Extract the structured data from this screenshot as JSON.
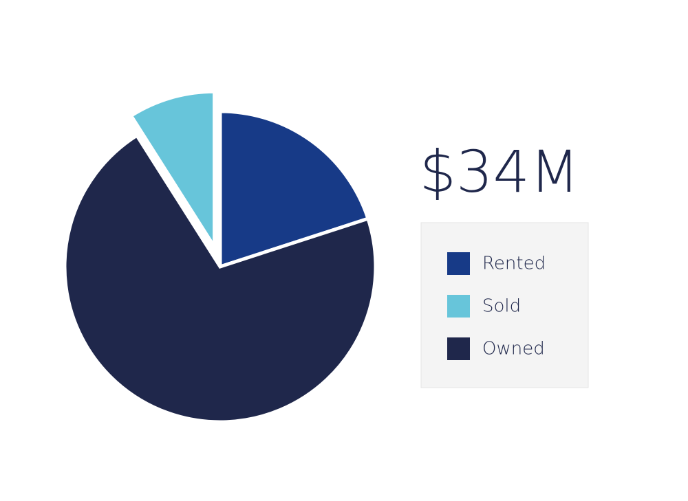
{
  "chart_data": {
    "type": "pie",
    "total_label": "$34M",
    "categories": [
      "Rented",
      "Sold",
      "Owned"
    ],
    "values": [
      20,
      9,
      71
    ],
    "colors": [
      "#173a87",
      "#67c5da",
      "#1f274b"
    ],
    "exploded": [
      false,
      true,
      false
    ],
    "legend": "right"
  }
}
